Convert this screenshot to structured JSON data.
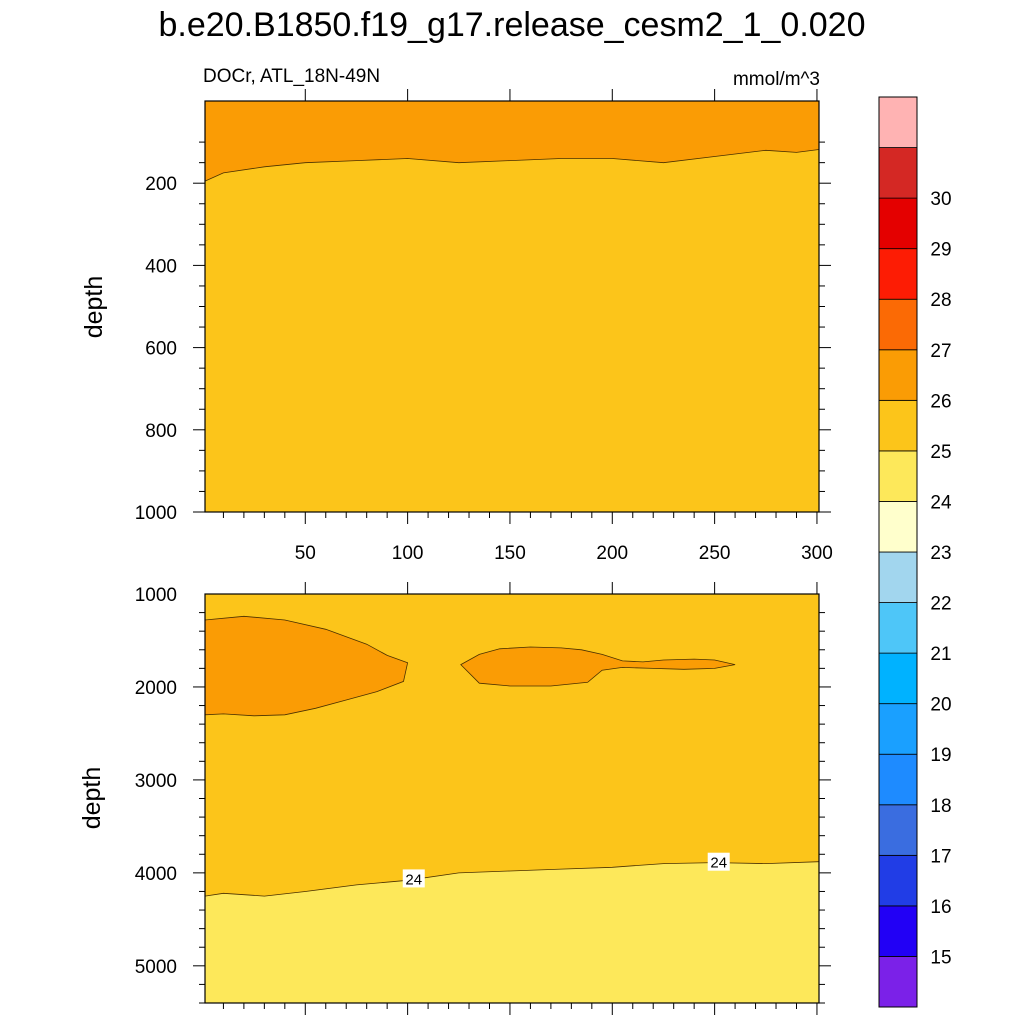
{
  "title": "b.e20.B1850.f19_g17.release_cesm2_1_0.020",
  "variable_label": "DOCr, ATL_18N-49N",
  "units_label": "mmol/m^3",
  "colorbar": {
    "levels": [
      "15",
      "16",
      "17",
      "18",
      "19",
      "20",
      "21",
      "22",
      "23",
      "24",
      "25",
      "26",
      "27",
      "28",
      "29",
      "30"
    ],
    "colors": [
      "#7b21e8",
      "#2200f5",
      "#213de6",
      "#3a6de0",
      "#1e8bff",
      "#1aa0ff",
      "#00b2ff",
      "#4ec6f8",
      "#a2d6ee",
      "#ffffcc",
      "#fde85a",
      "#fcc51a",
      "#fa9c05",
      "#fb6a05",
      "#fd1c04",
      "#e40000",
      "#d42824",
      "#ffb3b3"
    ]
  },
  "chart_data": [
    {
      "type": "contour",
      "panel": "upper",
      "x_ticks": [
        "50",
        "100",
        "150",
        "200",
        "250",
        "300"
      ],
      "xlim": [
        1,
        301
      ],
      "ylabel": "depth",
      "y_ticks": [
        "200",
        "400",
        "600",
        "800",
        "1000"
      ],
      "ylim": [
        1000,
        0
      ],
      "y_inverted": true,
      "regions": [
        {
          "range": "24-25",
          "color": "#fcc51a",
          "area": "below boundary"
        },
        {
          "range": "25-26",
          "color": "#fa9c05",
          "area": "surface layer above boundary"
        }
      ],
      "boundary_25": {
        "x": [
          1,
          10,
          30,
          50,
          75,
          100,
          125,
          150,
          175,
          200,
          225,
          250,
          275,
          290,
          301
        ],
        "depth": [
          195,
          175,
          160,
          150,
          145,
          140,
          150,
          145,
          140,
          140,
          150,
          135,
          120,
          125,
          118
        ]
      }
    },
    {
      "type": "contour",
      "panel": "lower",
      "xlim": [
        1,
        301
      ],
      "ylabel": "depth",
      "y_ticks": [
        "1000",
        "2000",
        "3000",
        "4000",
        "5000"
      ],
      "ylim": [
        5400,
        1000
      ],
      "y_inverted": true,
      "regions": [
        {
          "range": "23-24",
          "color": "#fde85a",
          "area": "below 24 contour"
        },
        {
          "range": "24-25",
          "color": "#fcc51a",
          "area": "background"
        },
        {
          "range": "25-26",
          "color": "#fa9c05",
          "area": "mid-depth lenses"
        }
      ],
      "contour_labels": [
        "24",
        "24"
      ],
      "contour_label_x": [
        103,
        252
      ],
      "contour_24": {
        "x": [
          1,
          10,
          30,
          50,
          75,
          100,
          125,
          150,
          175,
          200,
          225,
          250,
          275,
          301
        ],
        "depth": [
          4250,
          4220,
          4250,
          4200,
          4130,
          4080,
          4000,
          3980,
          3960,
          3940,
          3900,
          3890,
          3900,
          3880
        ]
      },
      "lenses_25": [
        {
          "x": [
            1,
            20,
            40,
            60,
            80,
            90,
            100,
            98,
            85,
            70,
            55,
            40,
            25,
            10,
            1
          ],
          "depth": [
            1280,
            1240,
            1280,
            1380,
            1540,
            1660,
            1740,
            1940,
            2050,
            2140,
            2230,
            2300,
            2310,
            2290,
            2300
          ]
        },
        {
          "x": [
            126,
            135,
            145,
            160,
            175,
            185,
            195,
            205,
            215,
            225,
            240,
            250,
            260,
            250,
            235,
            220,
            205,
            195,
            188,
            170,
            150,
            135,
            126
          ],
          "depth": [
            1760,
            1650,
            1590,
            1570,
            1580,
            1600,
            1650,
            1720,
            1730,
            1710,
            1700,
            1710,
            1760,
            1800,
            1810,
            1800,
            1790,
            1820,
            1950,
            1990,
            1990,
            1960,
            1760
          ]
        }
      ]
    }
  ]
}
